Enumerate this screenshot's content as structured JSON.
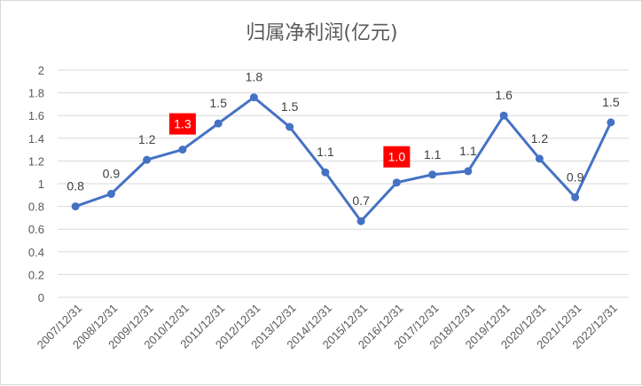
{
  "chart_data": {
    "type": "line",
    "title": "归属净利润(亿元)",
    "xlabel": "",
    "ylabel": "",
    "ylim": [
      0,
      2
    ],
    "yticks": [
      "0",
      "0.2",
      "0.4",
      "0.6",
      "0.8",
      "1",
      "1.2",
      "1.4",
      "1.6",
      "1.8",
      "2"
    ],
    "grid": true,
    "categories": [
      "2007/12/31",
      "2008/12/31",
      "2009/12/31",
      "2010/12/31",
      "2011/12/31",
      "2012/12/31",
      "2013/12/31",
      "2014/12/31",
      "2015/12/31",
      "2016/12/31",
      "2017/12/31",
      "2018/12/31",
      "2019/12/31",
      "2020/12/31",
      "2021/12/31",
      "2022/12/31"
    ],
    "series": [
      {
        "color": "#4472C4",
        "values": [
          0.8,
          0.91,
          1.21,
          1.3,
          1.53,
          1.76,
          1.5,
          1.1,
          0.67,
          1.01,
          1.08,
          1.11,
          1.6,
          1.22,
          0.88,
          1.54
        ],
        "labels": [
          "0.8",
          "0.9",
          "1.2",
          "1.3",
          "1.5",
          "1.8",
          "1.5",
          "1.1",
          "0.7",
          "1.0",
          "1.1",
          "1.1",
          "1.6",
          "1.2",
          "0.9",
          "1.5"
        ],
        "highlighted_labels": [
          3,
          9
        ],
        "highlight_color": "#FF0000"
      }
    ]
  }
}
